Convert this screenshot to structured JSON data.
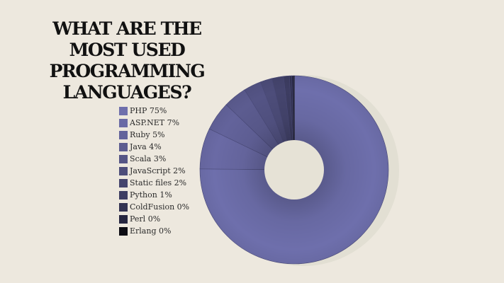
{
  "title": "WHAT ARE THE MOST USED PROGRAMMING LANGUAGES?",
  "colors": {
    "background": "#ede8de",
    "shadow": "#e2dfd3",
    "donut_hole": "#e6e2d6"
  },
  "chart_data": {
    "type": "pie",
    "style": "donut",
    "title": "WHAT ARE THE MOST USED PROGRAMMING LANGUAGES?",
    "legend_position": "left",
    "start_angle_deg": 0,
    "direction": "clockwise-from-top",
    "slices": [
      {
        "label": "PHP 75%",
        "name": "PHP",
        "value": 75,
        "color": "#6e6fac"
      },
      {
        "label": "ASP.NET 7%",
        "name": "ASP.NET",
        "value": 7,
        "color": "#6a6aa5"
      },
      {
        "label": "Ruby 5%",
        "name": "Ruby",
        "value": 5,
        "color": "#63639b"
      },
      {
        "label": "Java 4%",
        "name": "Java",
        "value": 4,
        "color": "#5c5c90"
      },
      {
        "label": "Scala 3%",
        "name": "Scala",
        "value": 3,
        "color": "#545485"
      },
      {
        "label": "JavaScript 2%",
        "name": "JavaScript",
        "value": 2,
        "color": "#4d4d7a"
      },
      {
        "label": "Static files 2%",
        "name": "Static files",
        "value": 2,
        "color": "#45456e"
      },
      {
        "label": "Python 1%",
        "name": "Python",
        "value": 1,
        "color": "#3d3d62"
      },
      {
        "label": "ColdFusion 0%",
        "name": "ColdFusion",
        "value": 0.4,
        "color": "#333352"
      },
      {
        "label": "Perl 0%",
        "name": "Perl",
        "value": 0.3,
        "color": "#262640"
      },
      {
        "label": "Erlang 0%",
        "name": "Erlang",
        "value": 0.1,
        "color": "#0d0d14"
      }
    ]
  }
}
